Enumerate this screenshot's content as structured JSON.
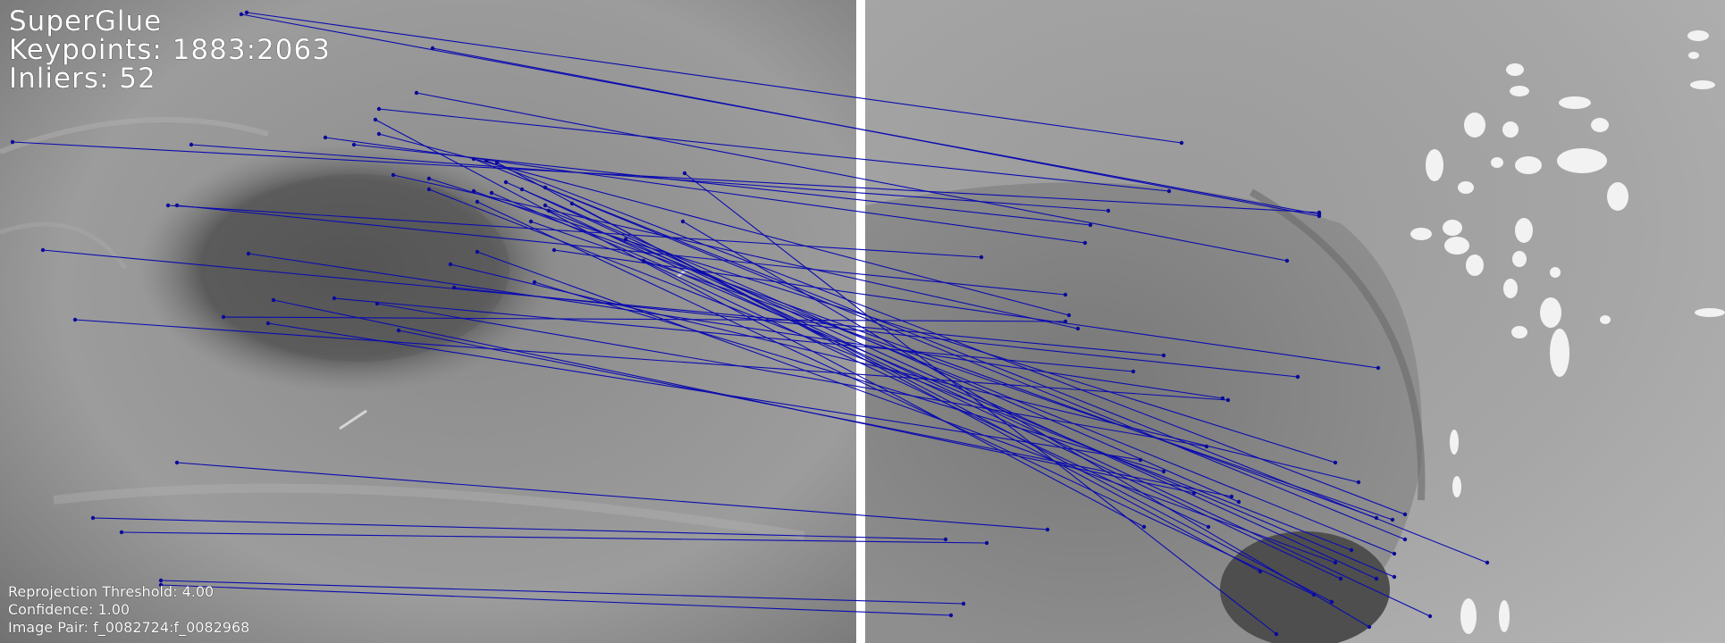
{
  "overlay": {
    "title": "SuperGlue",
    "keypoints": "Keypoints: 1883:2063",
    "inliers": "Inliers: 52",
    "reprojection_threshold": "Reprojection Threshold: 4.00",
    "confidence": "Confidence: 1.00",
    "image_pair": "Image Pair: f_0082724:f_0082968"
  },
  "colors": {
    "match_line": "#0b0bb0",
    "keypoint": "#0a0a9a",
    "divider": "#ffffff",
    "overlay_text": "#ffffff"
  },
  "images": [
    {
      "name": "left-endoscopy-frame",
      "frame": "f_0082724"
    },
    {
      "name": "right-endoscopy-frame",
      "frame": "f_0082968"
    }
  ]
}
